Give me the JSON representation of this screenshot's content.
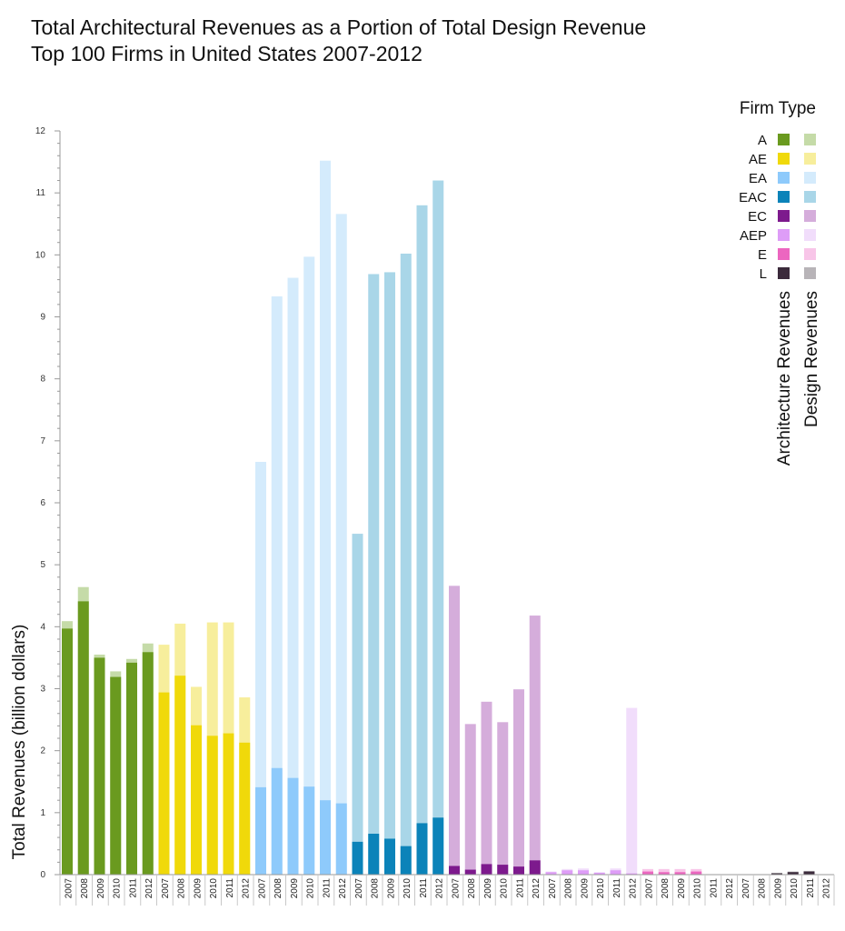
{
  "title": {
    "line1": "Total Architectural Revenues as a Portion of Total Design Revenue",
    "line2": "Top 100 Firms in United States 2007-2012"
  },
  "chart_data": {
    "type": "bar",
    "title": "Total Architectural Revenues as a Portion of Total Design Revenue",
    "subtitle": "Top 100 Firms in United States 2007-2012",
    "ylabel": "Total Revenues (billion dollars)",
    "xlabel": "",
    "ylim": [
      0,
      12
    ],
    "yticks": [
      0,
      1,
      2,
      3,
      4,
      5,
      6,
      7,
      8,
      9,
      10,
      11,
      12
    ],
    "grid": false,
    "years": [
      "2007",
      "2008",
      "2009",
      "2010",
      "2011",
      "2012"
    ],
    "legend": {
      "title": "Firm Type",
      "placement": "top-right",
      "column_labels": [
        "Architecture Revenues",
        "Design Revenues"
      ]
    },
    "groups": [
      {
        "name": "A",
        "arch_color": "#6a9a1f",
        "design_color": "#c5dba8",
        "architecture": [
          3.97,
          4.41,
          3.5,
          3.19,
          3.42,
          3.59
        ],
        "design": [
          4.09,
          4.64,
          3.55,
          3.28,
          3.48,
          3.73
        ]
      },
      {
        "name": "AE",
        "arch_color": "#f0d90a",
        "design_color": "#f7ee9c",
        "architecture": [
          2.94,
          3.21,
          2.41,
          2.24,
          2.28,
          2.13
        ],
        "design": [
          3.71,
          4.05,
          3.03,
          4.07,
          4.07,
          2.86
        ]
      },
      {
        "name": "EA",
        "arch_color": "#8ecafb",
        "design_color": "#d4ebfc",
        "architecture": [
          1.41,
          1.72,
          1.56,
          1.42,
          1.2,
          1.15
        ],
        "design": [
          6.66,
          9.33,
          9.63,
          9.97,
          11.52,
          10.66
        ]
      },
      {
        "name": "EAC",
        "arch_color": "#0b83b9",
        "design_color": "#a9d6e8",
        "architecture": [
          0.53,
          0.66,
          0.58,
          0.46,
          0.83,
          0.92
        ],
        "design": [
          5.5,
          9.69,
          9.72,
          10.02,
          10.8,
          11.2
        ]
      },
      {
        "name": "EC",
        "arch_color": "#7d1a8d",
        "design_color": "#d5addb",
        "architecture": [
          0.14,
          0.08,
          0.17,
          0.16,
          0.13,
          0.23
        ],
        "design": [
          4.66,
          2.43,
          2.79,
          2.46,
          2.99,
          4.18
        ]
      },
      {
        "name": "AEP",
        "arch_color": "#de9df7",
        "design_color": "#f1ddfb",
        "architecture": [
          0.04,
          0.07,
          0.07,
          0.03,
          0.07,
          0.02
        ],
        "design": [
          0.05,
          0.09,
          0.1,
          0.04,
          0.1,
          2.69
        ]
      },
      {
        "name": "E",
        "arch_color": "#ec66c0",
        "design_color": "#f8c5e8",
        "architecture": [
          0.05,
          0.04,
          0.04,
          0.05,
          0.0,
          0.0
        ],
        "design": [
          0.09,
          0.09,
          0.09,
          0.09,
          0.0,
          0.0
        ]
      },
      {
        "name": "L",
        "arch_color": "#3b2a3b",
        "design_color": "#b8b4b8",
        "architecture": [
          0.0,
          0.0,
          0.02,
          0.04,
          0.05,
          0.0
        ],
        "design": [
          0.0,
          0.0,
          0.03,
          0.05,
          0.06,
          0.0
        ]
      }
    ]
  }
}
